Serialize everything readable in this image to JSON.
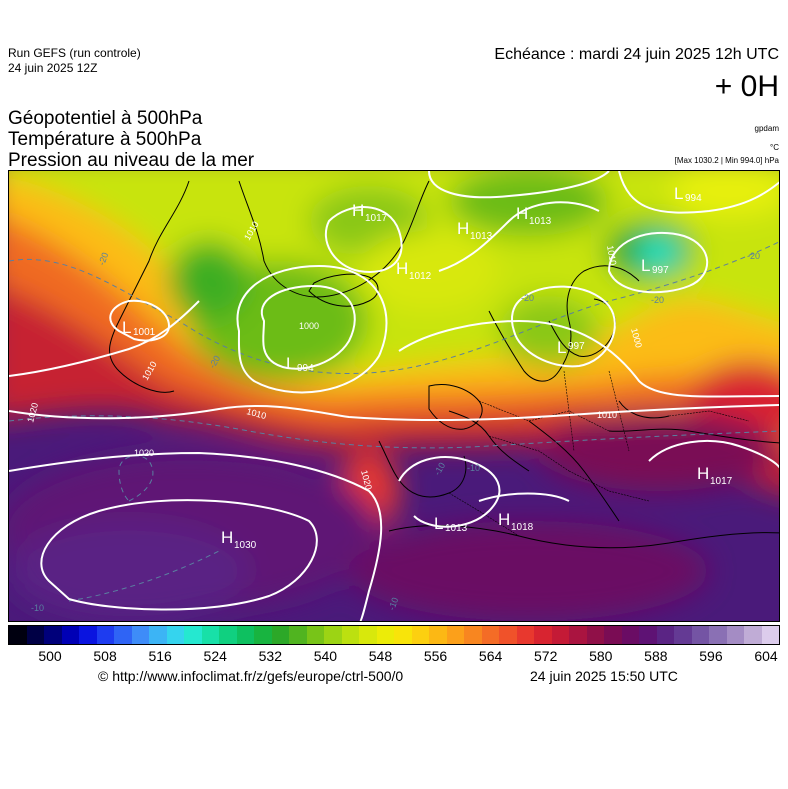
{
  "header": {
    "run_label": "Run GEFS (run controle)",
    "run_date": "24 juin 2025 12Z",
    "valid_time": "Echéance : mardi 24 juin 2025 12h UTC",
    "lead_time": "+ 0H"
  },
  "parameters": [
    "Géopotentiel à 500hPa",
    "Température à 500hPa",
    "Pression au niveau de la mer"
  ],
  "units": {
    "geopotential": "gpdam",
    "temperature": "°C",
    "pressure": "[Max 1030.2 | Min 994.0] hPa"
  },
  "pressure_centers": [
    {
      "type": "H",
      "value": "1017"
    },
    {
      "type": "H",
      "value": "1013"
    },
    {
      "type": "H",
      "value": "1013"
    },
    {
      "type": "H",
      "value": "1012"
    },
    {
      "type": "L",
      "value": "997"
    },
    {
      "type": "L",
      "value": "1001"
    },
    {
      "type": "L",
      "value": "994"
    },
    {
      "type": "L",
      "value": "997"
    },
    {
      "type": "H",
      "value": "1017"
    },
    {
      "type": "L",
      "value": "1013"
    },
    {
      "type": "H",
      "value": "1018"
    },
    {
      "type": "H",
      "value": "1030"
    },
    {
      "type": "L",
      "value": "994"
    }
  ],
  "isobar_labels": [
    "1010",
    "1000",
    "1010",
    "1010",
    "1020",
    "1020",
    "1020",
    "1010",
    "1000",
    "1010"
  ],
  "temperature_labels": [
    "-20",
    "-20",
    "-20",
    "-20",
    "-20",
    "-10",
    "-10",
    "-10",
    "-10"
  ],
  "colorbar": {
    "colors": [
      "#000010",
      "#000045",
      "#00007a",
      "#0000b5",
      "#0a14e0",
      "#1e3cf0",
      "#2f64f5",
      "#3e8cf8",
      "#3cb4f5",
      "#35d4ee",
      "#25e8d0",
      "#18e0a8",
      "#10d080",
      "#0ec060",
      "#18b440",
      "#2ca828",
      "#50b420",
      "#78c418",
      "#9cd414",
      "#bce010",
      "#d8e80c",
      "#ecec08",
      "#f8e40a",
      "#fcd010",
      "#fcb814",
      "#fca01a",
      "#f88620",
      "#f46c26",
      "#f0522a",
      "#e8382e",
      "#d82430",
      "#c41a36",
      "#aa1440",
      "#901048",
      "#7a0c54",
      "#6a0c64",
      "#5e1274",
      "#5a2484",
      "#643a94",
      "#7454a4",
      "#8a70b4",
      "#a48cc4",
      "#c0acd6",
      "#dcccec"
    ],
    "ticks": [
      "500",
      "508",
      "516",
      "524",
      "532",
      "540",
      "548",
      "556",
      "564",
      "572",
      "580",
      "588",
      "596",
      "604"
    ]
  },
  "footer": {
    "copyright": "© http://www.infoclimat.fr/z/gefs/europe/ctrl-500/0",
    "generated": "24 juin 2025 15:50 UTC"
  }
}
